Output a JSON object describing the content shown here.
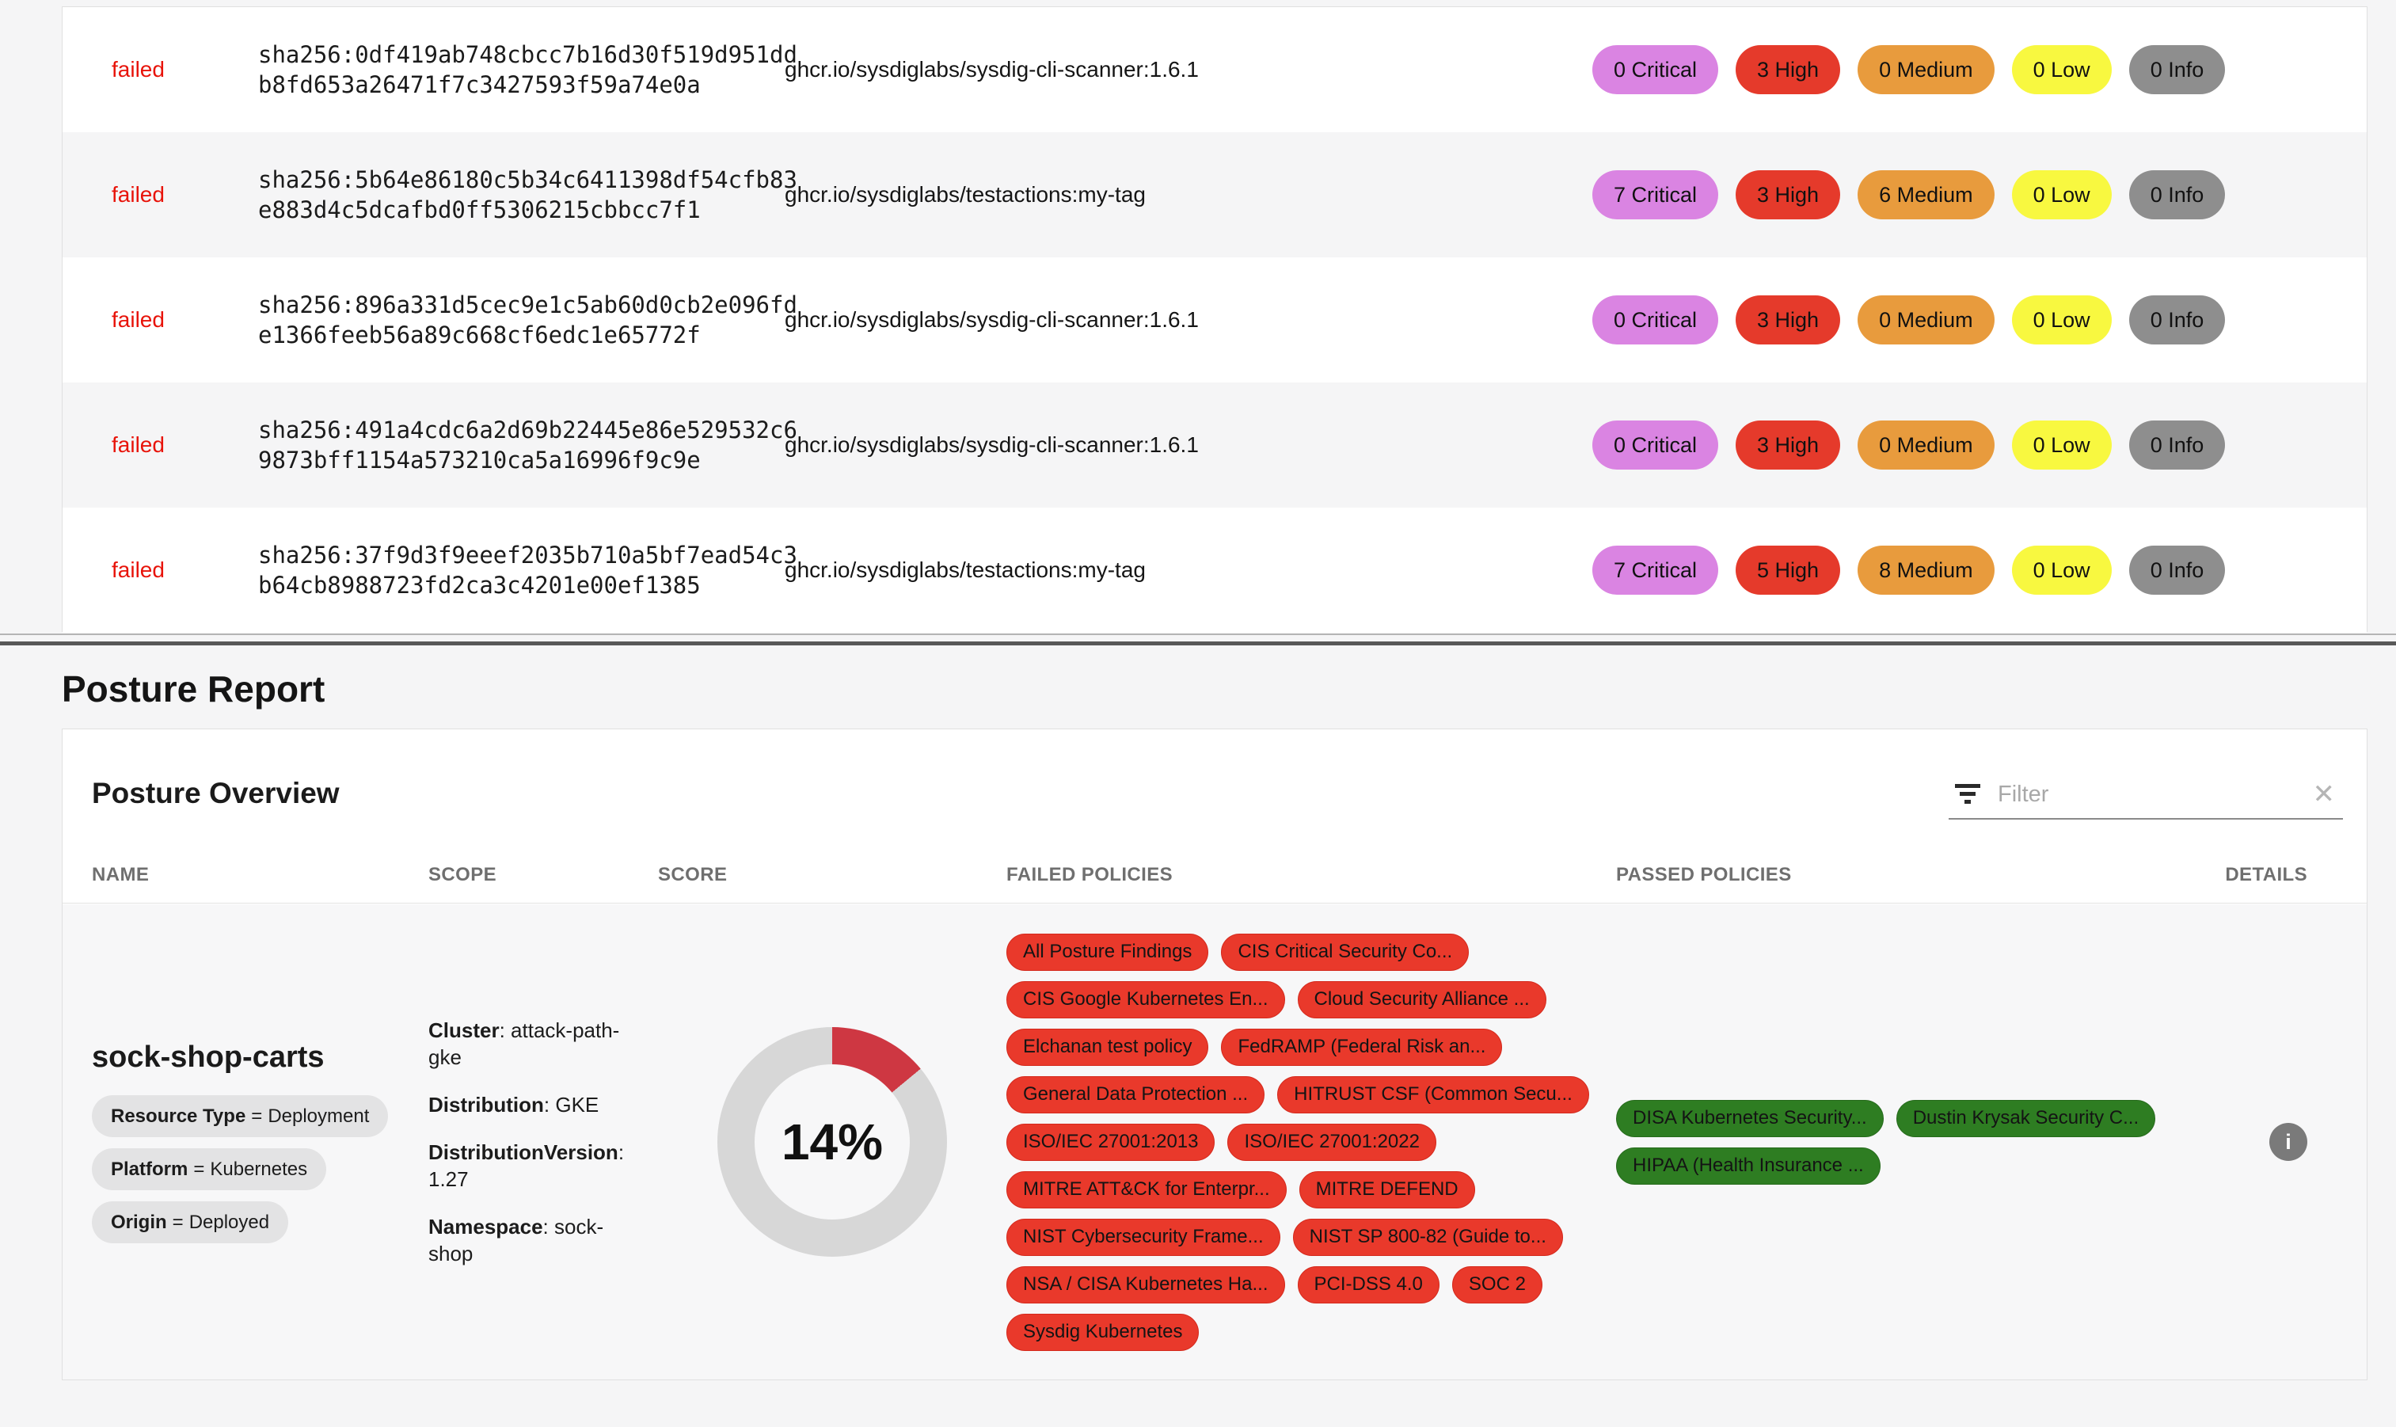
{
  "vuln_table": {
    "rows": [
      {
        "status": "failed",
        "digest": "sha256:0df419ab748cbcc7b16d30f519d951dd\nb8fd653a26471f7c3427593f59a74e0a",
        "image": "ghcr.io/sysdiglabs/sysdig-cli-scanner:1.6.1",
        "severities": {
          "critical": "0 Critical",
          "high": "3 High",
          "medium": "0 Medium",
          "low": "0 Low",
          "info": "0 Info"
        }
      },
      {
        "status": "failed",
        "digest": "sha256:5b64e86180c5b34c6411398df54cfb83\ne883d4c5dcafbd0ff5306215cbbcc7f1",
        "image": "ghcr.io/sysdiglabs/testactions:my-tag",
        "severities": {
          "critical": "7 Critical",
          "high": "3 High",
          "medium": "6 Medium",
          "low": "0 Low",
          "info": "0 Info"
        }
      },
      {
        "status": "failed",
        "digest": "sha256:896a331d5cec9e1c5ab60d0cb2e096fd\ne1366feeb56a89c668cf6edc1e65772f",
        "image": "ghcr.io/sysdiglabs/sysdig-cli-scanner:1.6.1",
        "severities": {
          "critical": "0 Critical",
          "high": "3 High",
          "medium": "0 Medium",
          "low": "0 Low",
          "info": "0 Info"
        }
      },
      {
        "status": "failed",
        "digest": "sha256:491a4cdc6a2d69b22445e86e529532c6\n9873bff1154a573210ca5a16996f9c9e",
        "image": "ghcr.io/sysdiglabs/sysdig-cli-scanner:1.6.1",
        "severities": {
          "critical": "0 Critical",
          "high": "3 High",
          "medium": "0 Medium",
          "low": "0 Low",
          "info": "0 Info"
        }
      },
      {
        "status": "failed",
        "digest": "sha256:37f9d3f9eeef2035b710a5bf7ead54c3\nb64cb8988723fd2ca3c4201e00ef1385",
        "image": "ghcr.io/sysdiglabs/testactions:my-tag",
        "severities": {
          "critical": "7 Critical",
          "high": "5 High",
          "medium": "8 Medium",
          "low": "0 Low",
          "info": "0 Info"
        }
      }
    ]
  },
  "colors": {
    "severity_critical": "#da84e2",
    "severity_high": "#e53a2b",
    "severity_medium": "#e89b3d",
    "severity_low": "#f8f840",
    "severity_info": "#8e8e8e",
    "status_failed": "#e81309",
    "failed_policy": "#e9392b",
    "passed_policy": "#2e7d22",
    "score_arc": "#ce3742",
    "score_track": "#d7d7d7"
  },
  "icons": {
    "filter": "filter-funnel-icon",
    "clear_glyph": "✕",
    "details_info_glyph": "i"
  },
  "posture": {
    "section_title": "Posture Report",
    "card_title": "Posture Overview",
    "filter": {
      "placeholder": "Filter",
      "value": ""
    },
    "columns": {
      "name": "NAME",
      "scope": "SCOPE",
      "score": "SCORE",
      "failed": "FAILED POLICIES",
      "passed": "PASSED POLICIES",
      "details": "DETAILS"
    },
    "row": {
      "name": "sock-shop-carts",
      "label_separator": "=",
      "labels": [
        {
          "key": "Resource Type",
          "value": "Deployment"
        },
        {
          "key": "Platform",
          "value": "Kubernetes"
        },
        {
          "key": "Origin",
          "value": "Deployed"
        }
      ],
      "scope_separator": ":",
      "scope": [
        {
          "key": "Cluster",
          "value": "attack-path-gke"
        },
        {
          "key": "Distribution",
          "value": "GKE"
        },
        {
          "key": "DistributionVersion",
          "value": "1.27"
        },
        {
          "key": "Namespace",
          "value": "sock-shop"
        }
      ],
      "score_percent": 14,
      "score_label": "14%",
      "failed_policies": [
        "All Posture Findings",
        "CIS Critical Security Co...",
        "CIS Google Kubernetes En...",
        "Cloud Security Alliance ...",
        "Elchanan test policy",
        "FedRAMP (Federal Risk an...",
        "General Data Protection ...",
        "HITRUST CSF (Common Secu...",
        "ISO/IEC 27001:2013",
        "ISO/IEC 27001:2022",
        "MITRE ATT&CK for Enterpr...",
        "MITRE DEFEND",
        "NIST Cybersecurity Frame...",
        "NIST SP 800-82 (Guide to...",
        "NSA / CISA Kubernetes Ha...",
        "PCI-DSS 4.0",
        "SOC 2",
        "Sysdig Kubernetes"
      ],
      "passed_policies": [
        "DISA Kubernetes Security...",
        "Dustin Krysak Security C...",
        "HIPAA (Health Insurance ..."
      ]
    }
  }
}
